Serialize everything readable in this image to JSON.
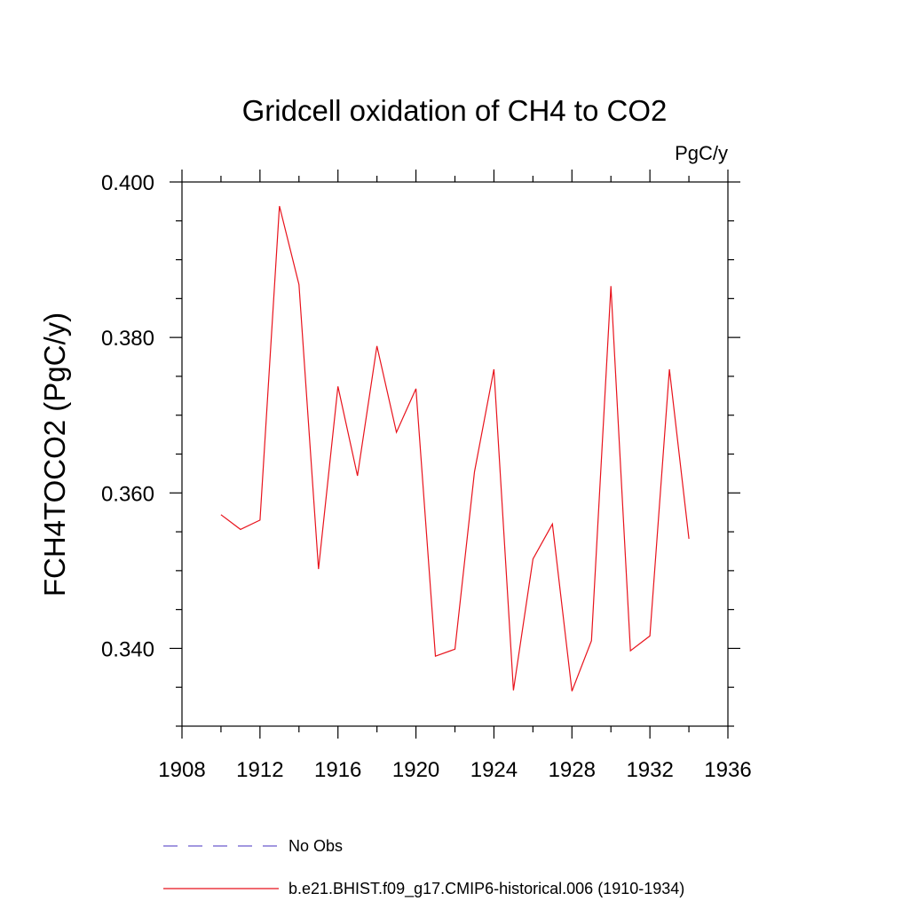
{
  "chart_data": {
    "type": "line",
    "title": "Gridcell oxidation of CH4 to CO2",
    "units": "PgC/y",
    "ylabel": "FCH4TOCO2  (PgC/y)",
    "xlabel": "",
    "xlim": [
      1908,
      1936
    ],
    "ylim": [
      0.33,
      0.4
    ],
    "xticks": [
      1908,
      1912,
      1916,
      1920,
      1924,
      1928,
      1932,
      1936
    ],
    "xtick_labels": [
      "1908",
      "1912",
      "1916",
      "1920",
      "1924",
      "1928",
      "1932",
      "1936"
    ],
    "xminor_step": 2,
    "yticks": [
      0.34,
      0.36,
      0.38,
      0.4
    ],
    "ytick_labels": [
      "0.340",
      "0.360",
      "0.380",
      "0.400"
    ],
    "yminor_step": 0.005,
    "series": [
      {
        "name": "b.e21.BHIST.f09_g17.CMIP6-historical.006 (1910-1934)",
        "color": "#e8131c",
        "x": [
          1910,
          1911,
          1912,
          1913,
          1914,
          1915,
          1916,
          1917,
          1918,
          1919,
          1920,
          1921,
          1922,
          1923,
          1924,
          1925,
          1926,
          1927,
          1928,
          1929,
          1930,
          1931,
          1932,
          1933,
          1934
        ],
        "values": [
          0.3572,
          0.3553,
          0.3565,
          0.3969,
          0.3868,
          0.3502,
          0.3737,
          0.3622,
          0.3789,
          0.3678,
          0.3734,
          0.339,
          0.3399,
          0.3627,
          0.3759,
          0.3346,
          0.3515,
          0.356,
          0.3345,
          0.341,
          0.3866,
          0.3397,
          0.3416,
          0.3759,
          0.3541
        ]
      }
    ],
    "legend": [
      {
        "label": "No Obs",
        "color": "#6a5acd",
        "style": "dashed"
      },
      {
        "label": "b.e21.BHIST.f09_g17.CMIP6-historical.006 (1910-1934)",
        "color": "#e8131c",
        "style": "solid"
      }
    ],
    "legend_position": "bottom-left",
    "grid": false
  }
}
